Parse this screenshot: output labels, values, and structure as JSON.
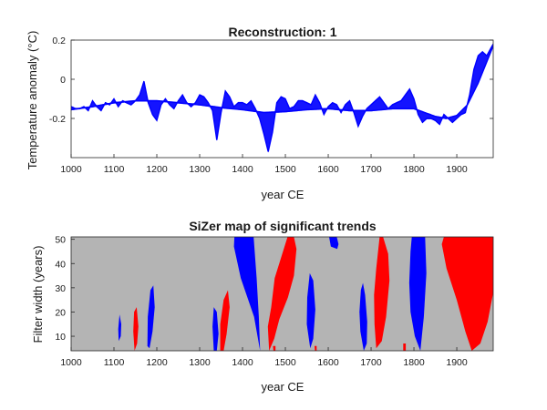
{
  "chart_data": [
    {
      "type": "area",
      "title": "Reconstruction: 1",
      "xlabel": "year CE",
      "ylabel": "Temperature anomaly (°C)",
      "xlim": [
        1000,
        1985
      ],
      "ylim": [
        -0.4,
        0.2
      ],
      "x_ticks": [
        "1000",
        "1100",
        "1200",
        "1300",
        "1400",
        "1500",
        "1600",
        "1700",
        "1800",
        "1900"
      ],
      "y_ticks": [
        "0.2",
        "0",
        "-0.2"
      ],
      "series_color": "#0000ff",
      "smooth_line": {
        "x": [
          1000,
          1050,
          1100,
          1150,
          1200,
          1250,
          1300,
          1350,
          1400,
          1450,
          1500,
          1550,
          1600,
          1650,
          1700,
          1750,
          1800,
          1825,
          1850,
          1875,
          1900,
          1925,
          1950,
          1985
        ],
        "y": [
          -0.155,
          -0.14,
          -0.12,
          -0.11,
          -0.11,
          -0.12,
          -0.13,
          -0.145,
          -0.155,
          -0.17,
          -0.165,
          -0.155,
          -0.15,
          -0.16,
          -0.16,
          -0.15,
          -0.15,
          -0.17,
          -0.19,
          -0.2,
          -0.185,
          -0.13,
          -0.02,
          0.17
        ]
      },
      "detail_line": {
        "x": [
          1000,
          1010,
          1020,
          1030,
          1040,
          1050,
          1060,
          1070,
          1080,
          1090,
          1100,
          1110,
          1120,
          1130,
          1140,
          1150,
          1160,
          1170,
          1180,
          1190,
          1200,
          1210,
          1220,
          1230,
          1240,
          1250,
          1260,
          1270,
          1280,
          1290,
          1300,
          1310,
          1320,
          1330,
          1340,
          1350,
          1360,
          1370,
          1380,
          1390,
          1400,
          1410,
          1420,
          1430,
          1440,
          1450,
          1460,
          1470,
          1480,
          1490,
          1500,
          1510,
          1520,
          1530,
          1540,
          1550,
          1560,
          1570,
          1580,
          1590,
          1600,
          1610,
          1620,
          1630,
          1640,
          1650,
          1660,
          1670,
          1680,
          1690,
          1700,
          1710,
          1720,
          1730,
          1740,
          1750,
          1760,
          1770,
          1780,
          1790,
          1800,
          1810,
          1820,
          1830,
          1840,
          1850,
          1860,
          1870,
          1880,
          1890,
          1900,
          1910,
          1920,
          1930,
          1940,
          1950,
          1960,
          1970,
          1980,
          1985
        ],
        "y": [
          -0.14,
          -0.15,
          -0.15,
          -0.14,
          -0.16,
          -0.11,
          -0.14,
          -0.16,
          -0.12,
          -0.13,
          -0.1,
          -0.14,
          -0.11,
          -0.12,
          -0.13,
          -0.11,
          -0.08,
          -0.01,
          -0.12,
          -0.18,
          -0.21,
          -0.13,
          -0.1,
          -0.13,
          -0.15,
          -0.11,
          -0.08,
          -0.12,
          -0.14,
          -0.12,
          -0.08,
          -0.09,
          -0.12,
          -0.16,
          -0.31,
          -0.17,
          -0.06,
          -0.09,
          -0.14,
          -0.12,
          -0.12,
          -0.13,
          -0.11,
          -0.15,
          -0.2,
          -0.28,
          -0.37,
          -0.27,
          -0.12,
          -0.09,
          -0.1,
          -0.15,
          -0.14,
          -0.11,
          -0.11,
          -0.12,
          -0.13,
          -0.08,
          -0.12,
          -0.18,
          -0.14,
          -0.12,
          -0.13,
          -0.17,
          -0.13,
          -0.11,
          -0.17,
          -0.24,
          -0.19,
          -0.15,
          -0.13,
          -0.11,
          -0.09,
          -0.12,
          -0.15,
          -0.13,
          -0.12,
          -0.11,
          -0.08,
          -0.05,
          -0.1,
          -0.18,
          -0.22,
          -0.2,
          -0.2,
          -0.21,
          -0.23,
          -0.18,
          -0.2,
          -0.22,
          -0.2,
          -0.18,
          -0.17,
          -0.08,
          0.05,
          0.12,
          0.14,
          0.12,
          0.16,
          0.18
        ]
      }
    },
    {
      "type": "heatmap",
      "title": "SiZer map of significant trends",
      "xlabel": "year CE",
      "ylabel": "Filter width (years)",
      "xlim": [
        1000,
        1985
      ],
      "ylim": [
        4,
        51
      ],
      "x_ticks": [
        "1000",
        "1100",
        "1200",
        "1300",
        "1400",
        "1500",
        "1600",
        "1700",
        "1800",
        "1900"
      ],
      "y_ticks": [
        "50",
        "40",
        "30",
        "20",
        "10"
      ],
      "colors": {
        "background": "#b4b4b4",
        "significant_increase": "#ff0000",
        "significant_decrease": "#0000ff"
      },
      "regions": [
        {
          "trend": "decrease",
          "x": [
            1111,
            1110,
            1113,
            1117,
            1116
          ],
          "y": [
            8,
            13,
            19,
            15,
            10
          ]
        },
        {
          "trend": "increase",
          "x": [
            1148,
            1145,
            1147,
            1153,
            1157,
            1154
          ],
          "y": [
            4,
            12,
            20,
            22,
            14,
            7
          ]
        },
        {
          "trend": "decrease",
          "x": [
            1178,
            1179,
            1185,
            1192,
            1195,
            1190,
            1183
          ],
          "y": [
            6,
            18,
            29,
            31,
            22,
            12,
            5
          ]
        },
        {
          "trend": "decrease",
          "x": [
            1333,
            1330,
            1333,
            1340,
            1344,
            1340
          ],
          "y": [
            4,
            14,
            22,
            20,
            11,
            4
          ]
        },
        {
          "trend": "increase",
          "x": [
            1348,
            1348,
            1356,
            1366,
            1370,
            1363,
            1356
          ],
          "y": [
            4,
            15,
            25,
            29,
            22,
            11,
            4
          ]
        },
        {
          "trend": "decrease",
          "x": [
            1441,
            1427,
            1396,
            1380,
            1381,
            1426,
            1433,
            1438
          ],
          "y": [
            4,
            18,
            34,
            47,
            51,
            51,
            34,
            18
          ]
        },
        {
          "trend": "increase",
          "x": [
            1462,
            1459,
            1467,
            1475,
            1505,
            1520,
            1526,
            1520,
            1506,
            1486,
            1474
          ],
          "y": [
            4,
            14,
            22,
            34,
            51,
            51,
            46,
            35,
            26,
            17,
            9
          ]
        },
        {
          "trend": "decrease",
          "x": [
            1558,
            1550,
            1551,
            1557,
            1565,
            1570,
            1565
          ],
          "y": [
            5,
            15,
            26,
            36,
            33,
            21,
            9
          ]
        },
        {
          "trend": "decrease",
          "x": [
            1606,
            1602,
            1605,
            1620,
            1624,
            1621
          ],
          "y": [
            47,
            51,
            51,
            51,
            48,
            46
          ]
        },
        {
          "trend": "decrease",
          "x": [
            1683,
            1675,
            1673,
            1676,
            1681,
            1686,
            1691,
            1690
          ],
          "y": [
            4,
            12,
            20,
            29,
            32,
            27,
            16,
            7
          ]
        },
        {
          "trend": "increase",
          "x": [
            1712,
            1708,
            1707,
            1712,
            1720,
            1728,
            1740,
            1743,
            1735,
            1725
          ],
          "y": [
            5,
            15,
            27,
            38,
            51,
            51,
            44,
            33,
            18,
            8
          ]
        },
        {
          "trend": "decrease",
          "x": [
            1815,
            1802,
            1792,
            1789,
            1792,
            1795,
            1826,
            1829,
            1823
          ],
          "y": [
            4,
            10,
            20,
            32,
            45,
            51,
            51,
            36,
            18
          ]
        },
        {
          "trend": "increase",
          "x": [
            1935,
            1920,
            1900,
            1876,
            1865,
            1870,
            1985,
            1985,
            1972,
            1955
          ],
          "y": [
            4,
            12,
            25,
            38,
            48,
            51,
            51,
            28,
            16,
            7
          ]
        },
        {
          "trend": "increase",
          "x": [
            1472,
            1471,
            1477,
            1477
          ],
          "y": [
            4,
            6,
            6,
            4
          ]
        },
        {
          "trend": "increase",
          "x": [
            1569,
            1568,
            1573,
            1573
          ],
          "y": [
            4,
            6,
            6,
            4
          ]
        },
        {
          "trend": "increase",
          "x": [
            1775,
            1775,
            1781,
            1781
          ],
          "y": [
            4,
            7,
            7,
            4
          ]
        }
      ]
    }
  ]
}
